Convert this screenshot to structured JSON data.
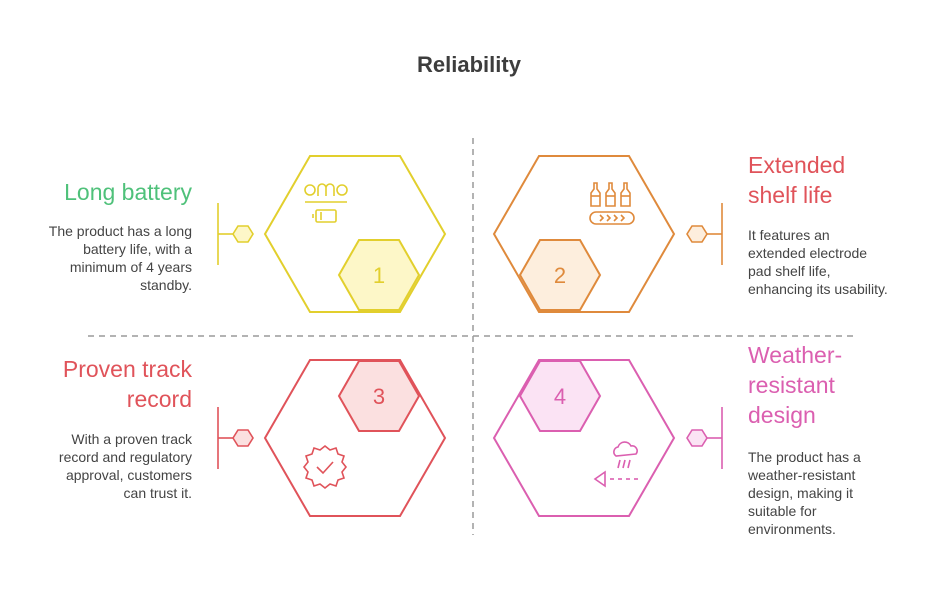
{
  "title": "Reliability",
  "colors": {
    "green": "#4fc17a",
    "yellow": "#e2cf2d",
    "yellow_fill": "#fdf7c8",
    "orange": "#df8a3c",
    "orange_fill": "#fdeedd",
    "red": "#e0535a",
    "red_fill": "#fbe0e0",
    "pink": "#db5fb0",
    "pink_fill": "#fbe3f4",
    "divider": "#9a9a9a"
  },
  "items": [
    {
      "number": "1",
      "heading": "Long battery",
      "description": "The product has a long battery life, with a minimum of 4 years standby.",
      "icon": "battery-icon"
    },
    {
      "number": "2",
      "heading": "Extended shelf life",
      "description": "It features an extended electrode pad shelf life, enhancing its usability.",
      "icon": "conveyor-bottles-icon"
    },
    {
      "number": "3",
      "heading": "Proven track record",
      "description": "With a proven track record and regulatory approval, customers can trust it.",
      "icon": "verified-badge-icon"
    },
    {
      "number": "4",
      "heading": "Weather-resistant design",
      "description": "The product has a weather-resistant design, making it suitable for environments.",
      "icon": "weather-rain-icon"
    }
  ]
}
